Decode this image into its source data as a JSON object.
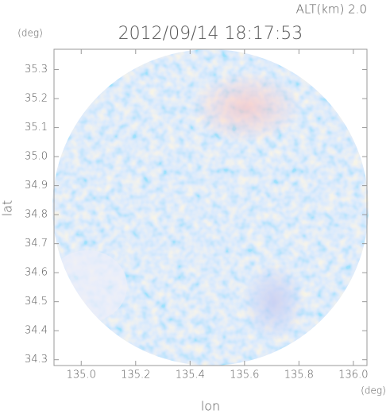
{
  "chart_data": {
    "type": "image",
    "subtitle": "ALT(km) 2.0",
    "title": "2012/09/14 18:17:53",
    "ylabel_unit": "(deg)",
    "ylabel": "lat",
    "xlabel": "lon",
    "xlabel_unit": "(deg)",
    "xlim": [
      134.9,
      136.05
    ],
    "ylim": [
      34.28,
      35.37
    ],
    "xticks": [
      {
        "value": 135,
        "label": "135.0"
      },
      135.2,
      135.4,
      135.6,
      135.8,
      {
        "value": 136,
        "label": "136.0"
      }
    ],
    "yticks": [
      34.3,
      34.4,
      34.5,
      34.6,
      34.7,
      34.8,
      34.9,
      {
        "value": 35,
        "label": "35.0"
      },
      35.1,
      35.2,
      35.3
    ]
  }
}
